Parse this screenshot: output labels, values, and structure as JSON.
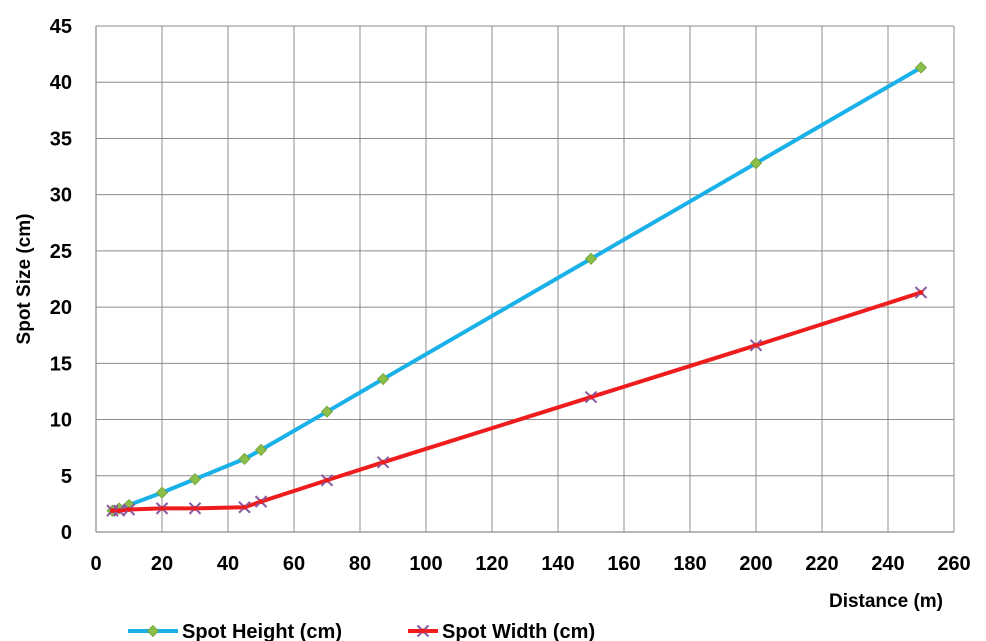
{
  "chart_data": {
    "type": "line",
    "xlabel": "Distance (m)",
    "ylabel": "Spot Size (cm)",
    "xlim": [
      0,
      260
    ],
    "ylim": [
      0,
      45
    ],
    "x_ticks": [
      0,
      20,
      40,
      60,
      80,
      100,
      120,
      140,
      160,
      180,
      200,
      220,
      240,
      260
    ],
    "y_ticks": [
      0,
      5,
      10,
      15,
      20,
      25,
      30,
      35,
      40,
      45
    ],
    "grid": true,
    "legend_position": "bottom",
    "series": [
      {
        "name": "Spot Height (cm)",
        "color": "#1ab0e8",
        "marker": "diamond",
        "marker_color": "#8bbf4a",
        "x": [
          5,
          7,
          10,
          20,
          30,
          45,
          50,
          70,
          87,
          150,
          200,
          250
        ],
        "y": [
          1.9,
          2.1,
          2.4,
          3.5,
          4.7,
          6.5,
          7.3,
          10.7,
          13.6,
          24.3,
          32.8,
          41.3
        ]
      },
      {
        "name": "Spot Width (cm)",
        "color": "#ee1c1c",
        "marker": "x",
        "marker_color": "#8a5aa0",
        "x": [
          5,
          7,
          10,
          20,
          30,
          45,
          50,
          70,
          87,
          150,
          200,
          250
        ],
        "y": [
          1.9,
          1.9,
          2.0,
          2.1,
          2.1,
          2.2,
          2.7,
          4.6,
          6.2,
          12.0,
          16.6,
          21.3
        ]
      }
    ]
  }
}
